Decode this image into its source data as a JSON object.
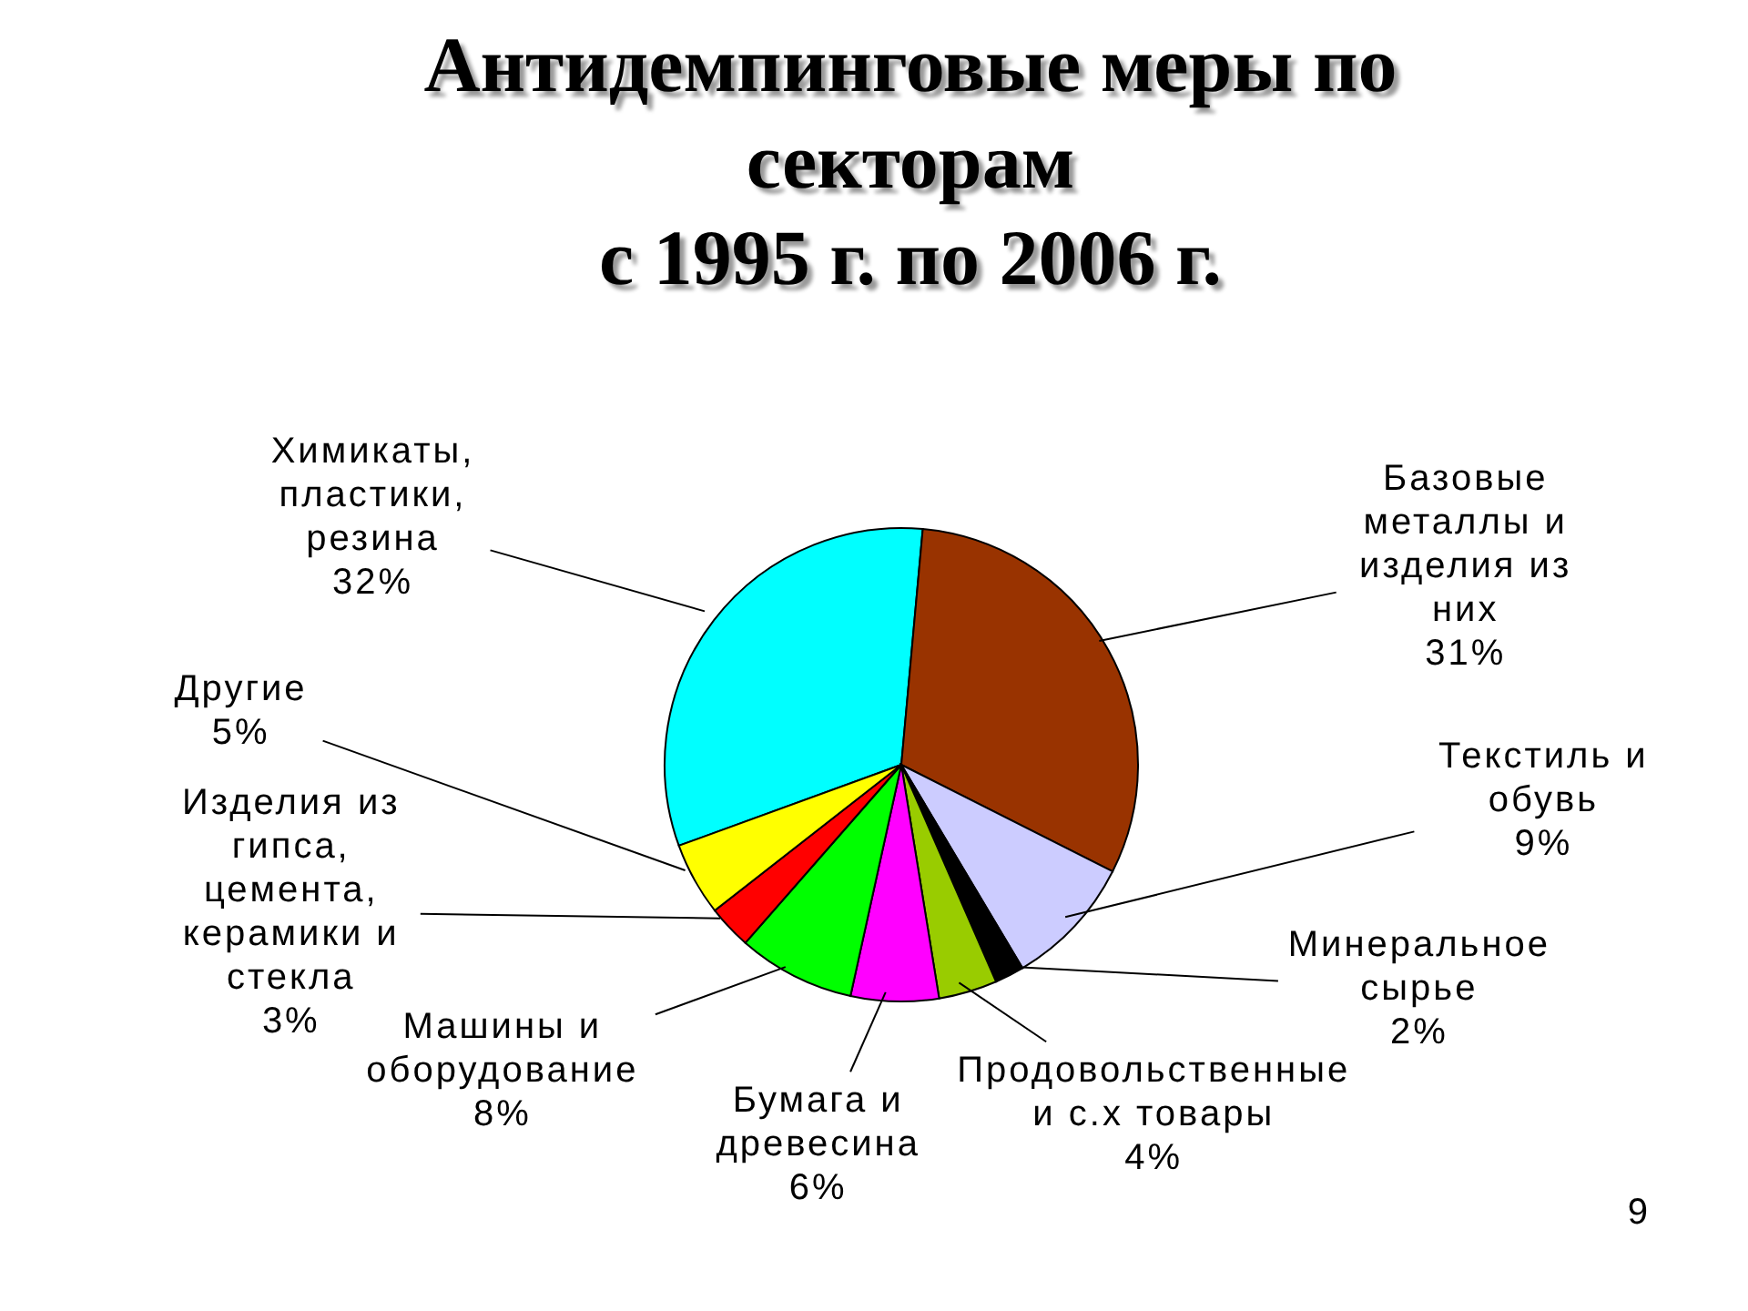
{
  "chart_data": {
    "type": "pie",
    "title": "Антидемпинговые меры по секторам\nс 1995 г. по 2006 г.",
    "categories": [
      "Химикаты, пластики, резина",
      "Базовые металлы и изделия из них",
      "Текстиль и обувь",
      "Минеральное сырье",
      "Продовольственные и с.х товары",
      "Бумага и древесина",
      "Машины и оборудование",
      "Изделия из гипса, цемента, керамики и стекла",
      "Другие"
    ],
    "values": [
      32,
      31,
      9,
      2,
      4,
      6,
      8,
      3,
      5
    ],
    "colors": [
      "#00ffff",
      "#993300",
      "#ccccff",
      "#000000",
      "#99cc00",
      "#ff00ff",
      "#00ff00",
      "#ff0000",
      "#ffff00"
    ],
    "value_labels": [
      "32%",
      "31%",
      "9%",
      "2%",
      "4%",
      "6%",
      "8%",
      "3%",
      "5%"
    ],
    "annotations": [
      "9"
    ]
  }
}
